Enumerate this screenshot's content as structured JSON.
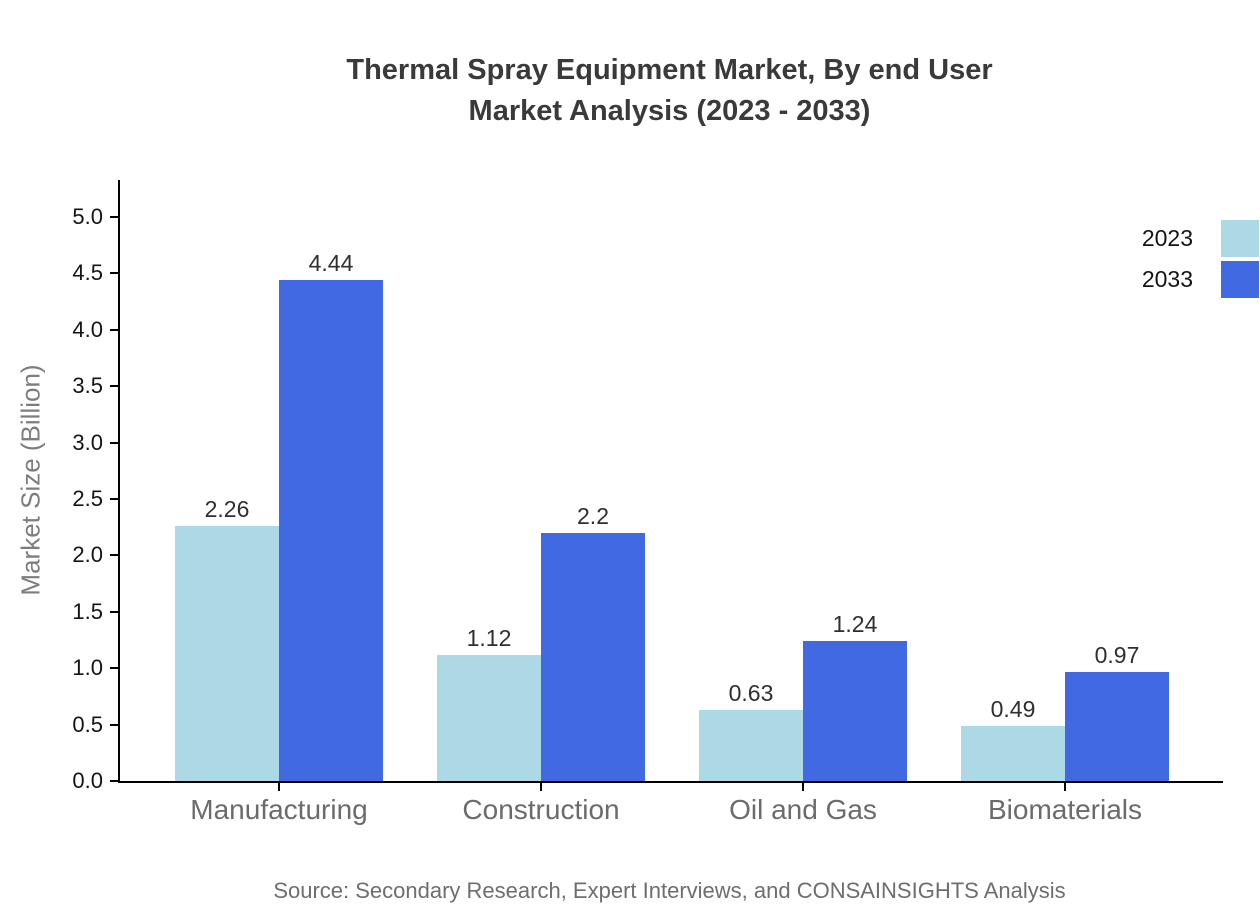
{
  "title": {
    "line1": "Thermal Spray Equipment Market, By end User",
    "line2": "Market Analysis (2023 - 2033)"
  },
  "source": "Source: Secondary Research, Expert Interviews, and CONSAINSIGHTS Analysis",
  "chart_data": {
    "type": "bar",
    "categories": [
      "Manufacturing",
      "Construction",
      "Oil and Gas",
      "Biomaterials"
    ],
    "series": [
      {
        "name": "2023",
        "color": "#ADD8E6",
        "values": [
          2.26,
          1.12,
          0.63,
          0.49
        ]
      },
      {
        "name": "2033",
        "color": "#4169E1",
        "values": [
          4.44,
          2.2,
          1.24,
          0.97
        ]
      }
    ],
    "xlabel": "",
    "ylabel": "Market Size (Billion)",
    "ylim": [
      0,
      5
    ],
    "ytick_step": 0.5,
    "grid": false,
    "legend_position": "top-right",
    "value_labels_shown": true
  }
}
